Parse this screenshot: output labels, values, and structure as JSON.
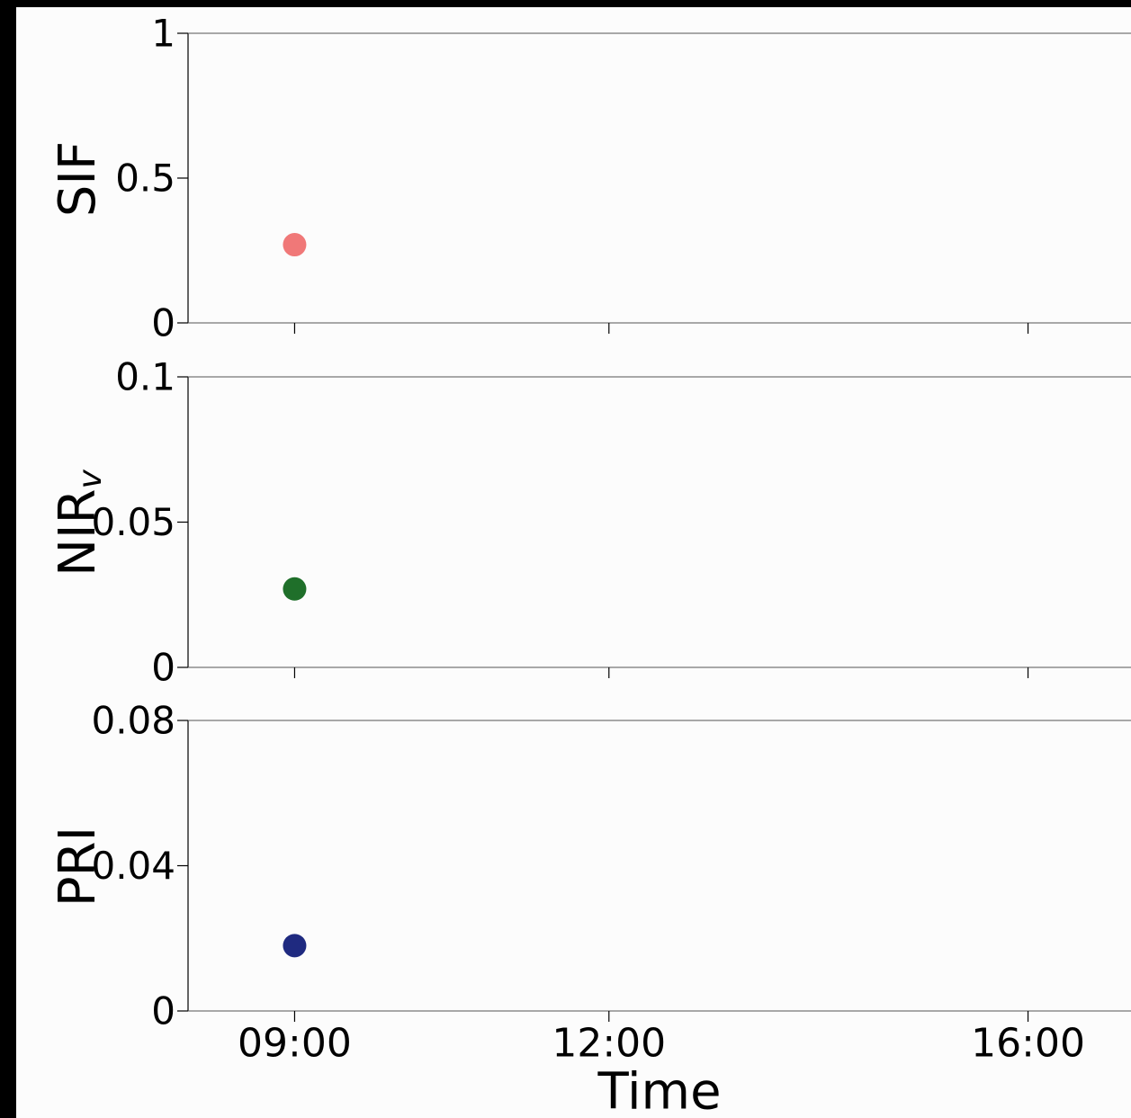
{
  "colors": {
    "frame_background": "#000000",
    "figure_background": "#fcfcfc",
    "axis_color": "#000000"
  },
  "chart_data": [
    {
      "type": "scatter",
      "ylabel": "SIF",
      "ylabel_subscript": "",
      "ylim": [
        0,
        1
      ],
      "yticks": [
        0,
        0.5,
        1
      ],
      "ytick_labels": [
        "0",
        "0.5",
        "1"
      ],
      "xticks": [
        "09:00",
        "12:00",
        "16:00"
      ],
      "x": [
        "09:00"
      ],
      "y": [
        0.27
      ],
      "color": "#f07878",
      "grid": false,
      "legend": "none"
    },
    {
      "type": "scatter",
      "ylabel": "NIR",
      "ylabel_subscript": "v",
      "ylim": [
        0,
        0.1
      ],
      "yticks": [
        0,
        0.05,
        0.1
      ],
      "ytick_labels": [
        "0",
        "0.05",
        "0.1"
      ],
      "xticks": [
        "09:00",
        "12:00",
        "16:00"
      ],
      "x": [
        "09:00"
      ],
      "y": [
        0.027
      ],
      "color": "#1f6f2a",
      "grid": false,
      "legend": "none"
    },
    {
      "type": "scatter",
      "ylabel": "PRI",
      "ylabel_subscript": "",
      "ylim": [
        0,
        0.08
      ],
      "yticks": [
        0,
        0.04,
        0.08
      ],
      "ytick_labels": [
        "0",
        "0.04",
        "0.08"
      ],
      "xticks": [
        "09:00",
        "12:00",
        "16:00"
      ],
      "x": [
        "09:00"
      ],
      "y": [
        0.018
      ],
      "color": "#1f2a80",
      "grid": false,
      "legend": "none"
    }
  ],
  "shared_x": {
    "label": "Time",
    "tick_labels": [
      "09:00",
      "12:00",
      "16:00"
    ],
    "tick_hours": [
      9,
      12,
      16
    ],
    "xlim_hours": [
      8,
      17
    ]
  }
}
